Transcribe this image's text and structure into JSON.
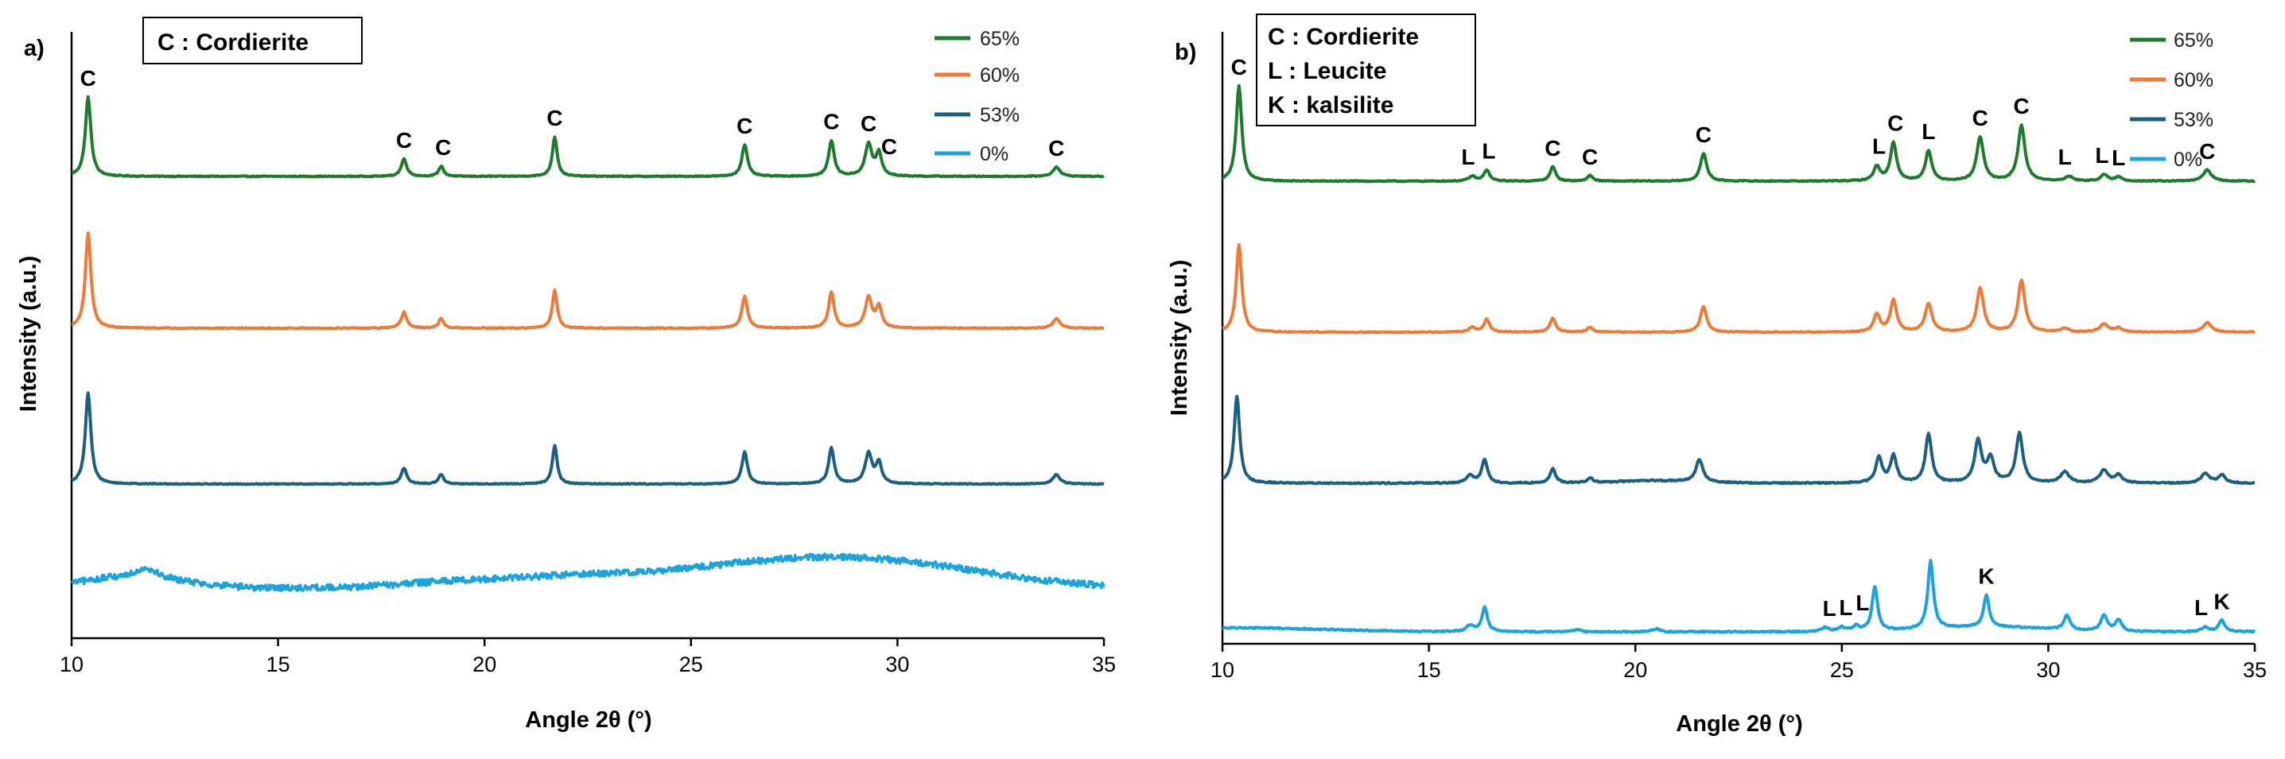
{
  "chart_data": [
    {
      "panel": "a)",
      "type": "line",
      "xlabel": "Angle 2θ (°)",
      "ylabel": "Intensity (a.u.)",
      "xlim": [
        10,
        35
      ],
      "xticks": [
        "10",
        "15",
        "20",
        "25",
        "30",
        "35"
      ],
      "legend": [
        "65%",
        "60%",
        "53%",
        "0%"
      ],
      "phase_legend": [
        "C : Cordierite"
      ],
      "series": [
        {
          "name": "65%",
          "color": "#1e7a2e",
          "noise": 0.6,
          "peaks": [
            [
              10.4,
              100,
              0.08
            ],
            [
              18.05,
              22,
              0.08
            ],
            [
              18.95,
              13,
              0.07
            ],
            [
              21.7,
              50,
              0.07
            ],
            [
              26.3,
              40,
              0.08
            ],
            [
              28.4,
              45,
              0.08
            ],
            [
              29.3,
              40,
              0.1
            ],
            [
              29.55,
              28,
              0.08
            ],
            [
              33.85,
              12,
              0.1
            ]
          ],
          "humps": []
        },
        {
          "name": "60%",
          "color": "#ee7a38",
          "noise": 0.6,
          "peaks": [
            [
              10.4,
              120,
              0.08
            ],
            [
              18.05,
              20,
              0.08
            ],
            [
              18.95,
              12,
              0.07
            ],
            [
              21.7,
              48,
              0.07
            ],
            [
              26.3,
              40,
              0.08
            ],
            [
              28.4,
              45,
              0.08
            ],
            [
              29.3,
              38,
              0.1
            ],
            [
              29.55,
              26,
              0.08
            ],
            [
              33.85,
              12,
              0.1
            ]
          ],
          "humps": []
        },
        {
          "name": "53%",
          "color": "#1d5f80",
          "noise": 0.6,
          "peaks": [
            [
              10.4,
              115,
              0.08
            ],
            [
              18.05,
              20,
              0.08
            ],
            [
              18.95,
              12,
              0.07
            ],
            [
              21.7,
              48,
              0.07
            ],
            [
              26.3,
              40,
              0.08
            ],
            [
              28.4,
              45,
              0.08
            ],
            [
              29.3,
              38,
              0.1
            ],
            [
              29.55,
              26,
              0.08
            ],
            [
              33.85,
              12,
              0.1
            ]
          ],
          "humps": []
        },
        {
          "name": "0%",
          "color": "#1aa3dc",
          "noise": 4,
          "peaks": [
            [
              11.8,
              12,
              0.3
            ]
          ],
          "humps": [
            [
              11.5,
              14,
              1.2
            ],
            [
              19.5,
              8,
              1.5
            ],
            [
              22.3,
              10,
              1.5
            ],
            [
              26.5,
              24,
              2.5
            ],
            [
              30,
              26,
              2.5
            ]
          ]
        }
      ],
      "annotations": [
        {
          "text": "C",
          "x": 10.4,
          "series": 0
        },
        {
          "text": "C",
          "x": 18.05,
          "series": 0
        },
        {
          "text": "C",
          "x": 19.0,
          "series": 0
        },
        {
          "text": "C",
          "x": 21.7,
          "series": 0
        },
        {
          "text": "C",
          "x": 26.3,
          "series": 0
        },
        {
          "text": "C",
          "x": 28.4,
          "series": 0
        },
        {
          "text": "C",
          "x": 29.3,
          "series": 0
        },
        {
          "text": "C",
          "x": 29.8,
          "series": 0
        },
        {
          "text": "C",
          "x": 33.85,
          "series": 0
        }
      ]
    },
    {
      "panel": "b)",
      "type": "line",
      "xlabel": "Angle 2θ (°)",
      "ylabel": "Intensity (a.u.)",
      "xlim": [
        10,
        35
      ],
      "xticks": [
        "10",
        "15",
        "20",
        "25",
        "30",
        "35"
      ],
      "legend": [
        "65%",
        "60%",
        "53%",
        "0%"
      ],
      "phase_legend": [
        "C : Cordierite",
        "L : Leucite",
        "K : kalsilite"
      ],
      "series": [
        {
          "name": "65%",
          "color": "#1e7a2e",
          "noise": 0.6,
          "peaks": [
            [
              10.4,
              120,
              0.08
            ],
            [
              16.05,
              6,
              0.1
            ],
            [
              16.4,
              14,
              0.08
            ],
            [
              18.0,
              18,
              0.08
            ],
            [
              18.9,
              7,
              0.08
            ],
            [
              21.65,
              35,
              0.09
            ],
            [
              25.85,
              18,
              0.09
            ],
            [
              26.25,
              48,
              0.09
            ],
            [
              27.1,
              38,
              0.09
            ],
            [
              28.35,
              55,
              0.1
            ],
            [
              29.35,
              70,
              0.1
            ],
            [
              30.5,
              6,
              0.1
            ],
            [
              31.35,
              8,
              0.1
            ],
            [
              31.7,
              5,
              0.1
            ],
            [
              33.85,
              14,
              0.12
            ]
          ],
          "humps": []
        },
        {
          "name": "60%",
          "color": "#ee7a38",
          "noise": 0.6,
          "peaks": [
            [
              10.4,
              110,
              0.08
            ],
            [
              16.05,
              6,
              0.1
            ],
            [
              16.4,
              16,
              0.08
            ],
            [
              18.0,
              18,
              0.08
            ],
            [
              18.9,
              6,
              0.08
            ],
            [
              21.65,
              32,
              0.09
            ],
            [
              25.85,
              22,
              0.09
            ],
            [
              26.25,
              40,
              0.09
            ],
            [
              27.1,
              35,
              0.1
            ],
            [
              28.35,
              55,
              0.1
            ],
            [
              29.35,
              65,
              0.1
            ],
            [
              30.4,
              5,
              0.1
            ],
            [
              31.35,
              10,
              0.12
            ],
            [
              31.7,
              5,
              0.1
            ],
            [
              33.85,
              12,
              0.12
            ]
          ],
          "humps": []
        },
        {
          "name": "53%",
          "color": "#1d5f80",
          "noise": 0.8,
          "peaks": [
            [
              10.35,
              110,
              0.08
            ],
            [
              16.0,
              10,
              0.1
            ],
            [
              16.35,
              30,
              0.08
            ],
            [
              18.0,
              18,
              0.08
            ],
            [
              18.9,
              6,
              0.08
            ],
            [
              21.55,
              28,
              0.1
            ],
            [
              25.9,
              32,
              0.09
            ],
            [
              26.25,
              34,
              0.09
            ],
            [
              27.1,
              62,
              0.09
            ],
            [
              28.3,
              52,
              0.1
            ],
            [
              28.6,
              30,
              0.1
            ],
            [
              29.3,
              62,
              0.1
            ],
            [
              30.4,
              14,
              0.12
            ],
            [
              31.35,
              16,
              0.12
            ],
            [
              31.7,
              10,
              0.1
            ],
            [
              33.8,
              12,
              0.12
            ],
            [
              34.2,
              10,
              0.1
            ]
          ],
          "humps": [
            [
              20.5,
              3,
              1.0
            ]
          ]
        },
        {
          "name": "0%",
          "color": "#1aa3dc",
          "noise": 0.8,
          "peaks": [
            [
              16.0,
              8,
              0.1
            ],
            [
              16.35,
              30,
              0.08
            ],
            [
              18.6,
              3,
              0.1
            ],
            [
              20.5,
              4,
              0.1
            ],
            [
              24.6,
              5,
              0.1
            ],
            [
              25.0,
              5,
              0.1
            ],
            [
              25.35,
              6,
              0.1
            ],
            [
              25.8,
              55,
              0.08
            ],
            [
              27.15,
              85,
              0.08
            ],
            [
              28.5,
              40,
              0.08
            ],
            [
              30.45,
              18,
              0.09
            ],
            [
              31.35,
              20,
              0.09
            ],
            [
              31.7,
              14,
              0.09
            ],
            [
              33.8,
              6,
              0.1
            ],
            [
              34.2,
              14,
              0.09
            ]
          ],
          "humps": [
            [
              10.5,
              5,
              2.0
            ],
            [
              28.5,
              6,
              1.5
            ]
          ]
        }
      ],
      "annotations": [
        {
          "text": "C",
          "x": 10.4,
          "series": 0
        },
        {
          "text": "L",
          "x": 15.95,
          "series": 0
        },
        {
          "text": "L",
          "x": 16.45,
          "series": 0
        },
        {
          "text": "C",
          "x": 18.0,
          "series": 0
        },
        {
          "text": "C",
          "x": 18.9,
          "series": 0
        },
        {
          "text": "C",
          "x": 21.65,
          "series": 0
        },
        {
          "text": "L",
          "x": 25.9,
          "series": 0
        },
        {
          "text": "C",
          "x": 26.3,
          "series": 0
        },
        {
          "text": "L",
          "x": 27.1,
          "series": 0
        },
        {
          "text": "C",
          "x": 28.35,
          "series": 0
        },
        {
          "text": "C",
          "x": 29.35,
          "series": 0
        },
        {
          "text": "L",
          "x": 30.4,
          "series": 0
        },
        {
          "text": "L",
          "x": 31.3,
          "series": 0
        },
        {
          "text": "L",
          "x": 31.7,
          "series": 0
        },
        {
          "text": "C",
          "x": 33.85,
          "series": 0
        },
        {
          "text": "L",
          "x": 24.7,
          "series": 3
        },
        {
          "text": "L",
          "x": 25.1,
          "series": 3
        },
        {
          "text": "L",
          "x": 25.5,
          "series": 3
        },
        {
          "text": "K",
          "x": 28.5,
          "series": 3
        },
        {
          "text": "L",
          "x": 33.7,
          "series": 3
        },
        {
          "text": "K",
          "x": 34.2,
          "series": 3
        }
      ]
    }
  ]
}
